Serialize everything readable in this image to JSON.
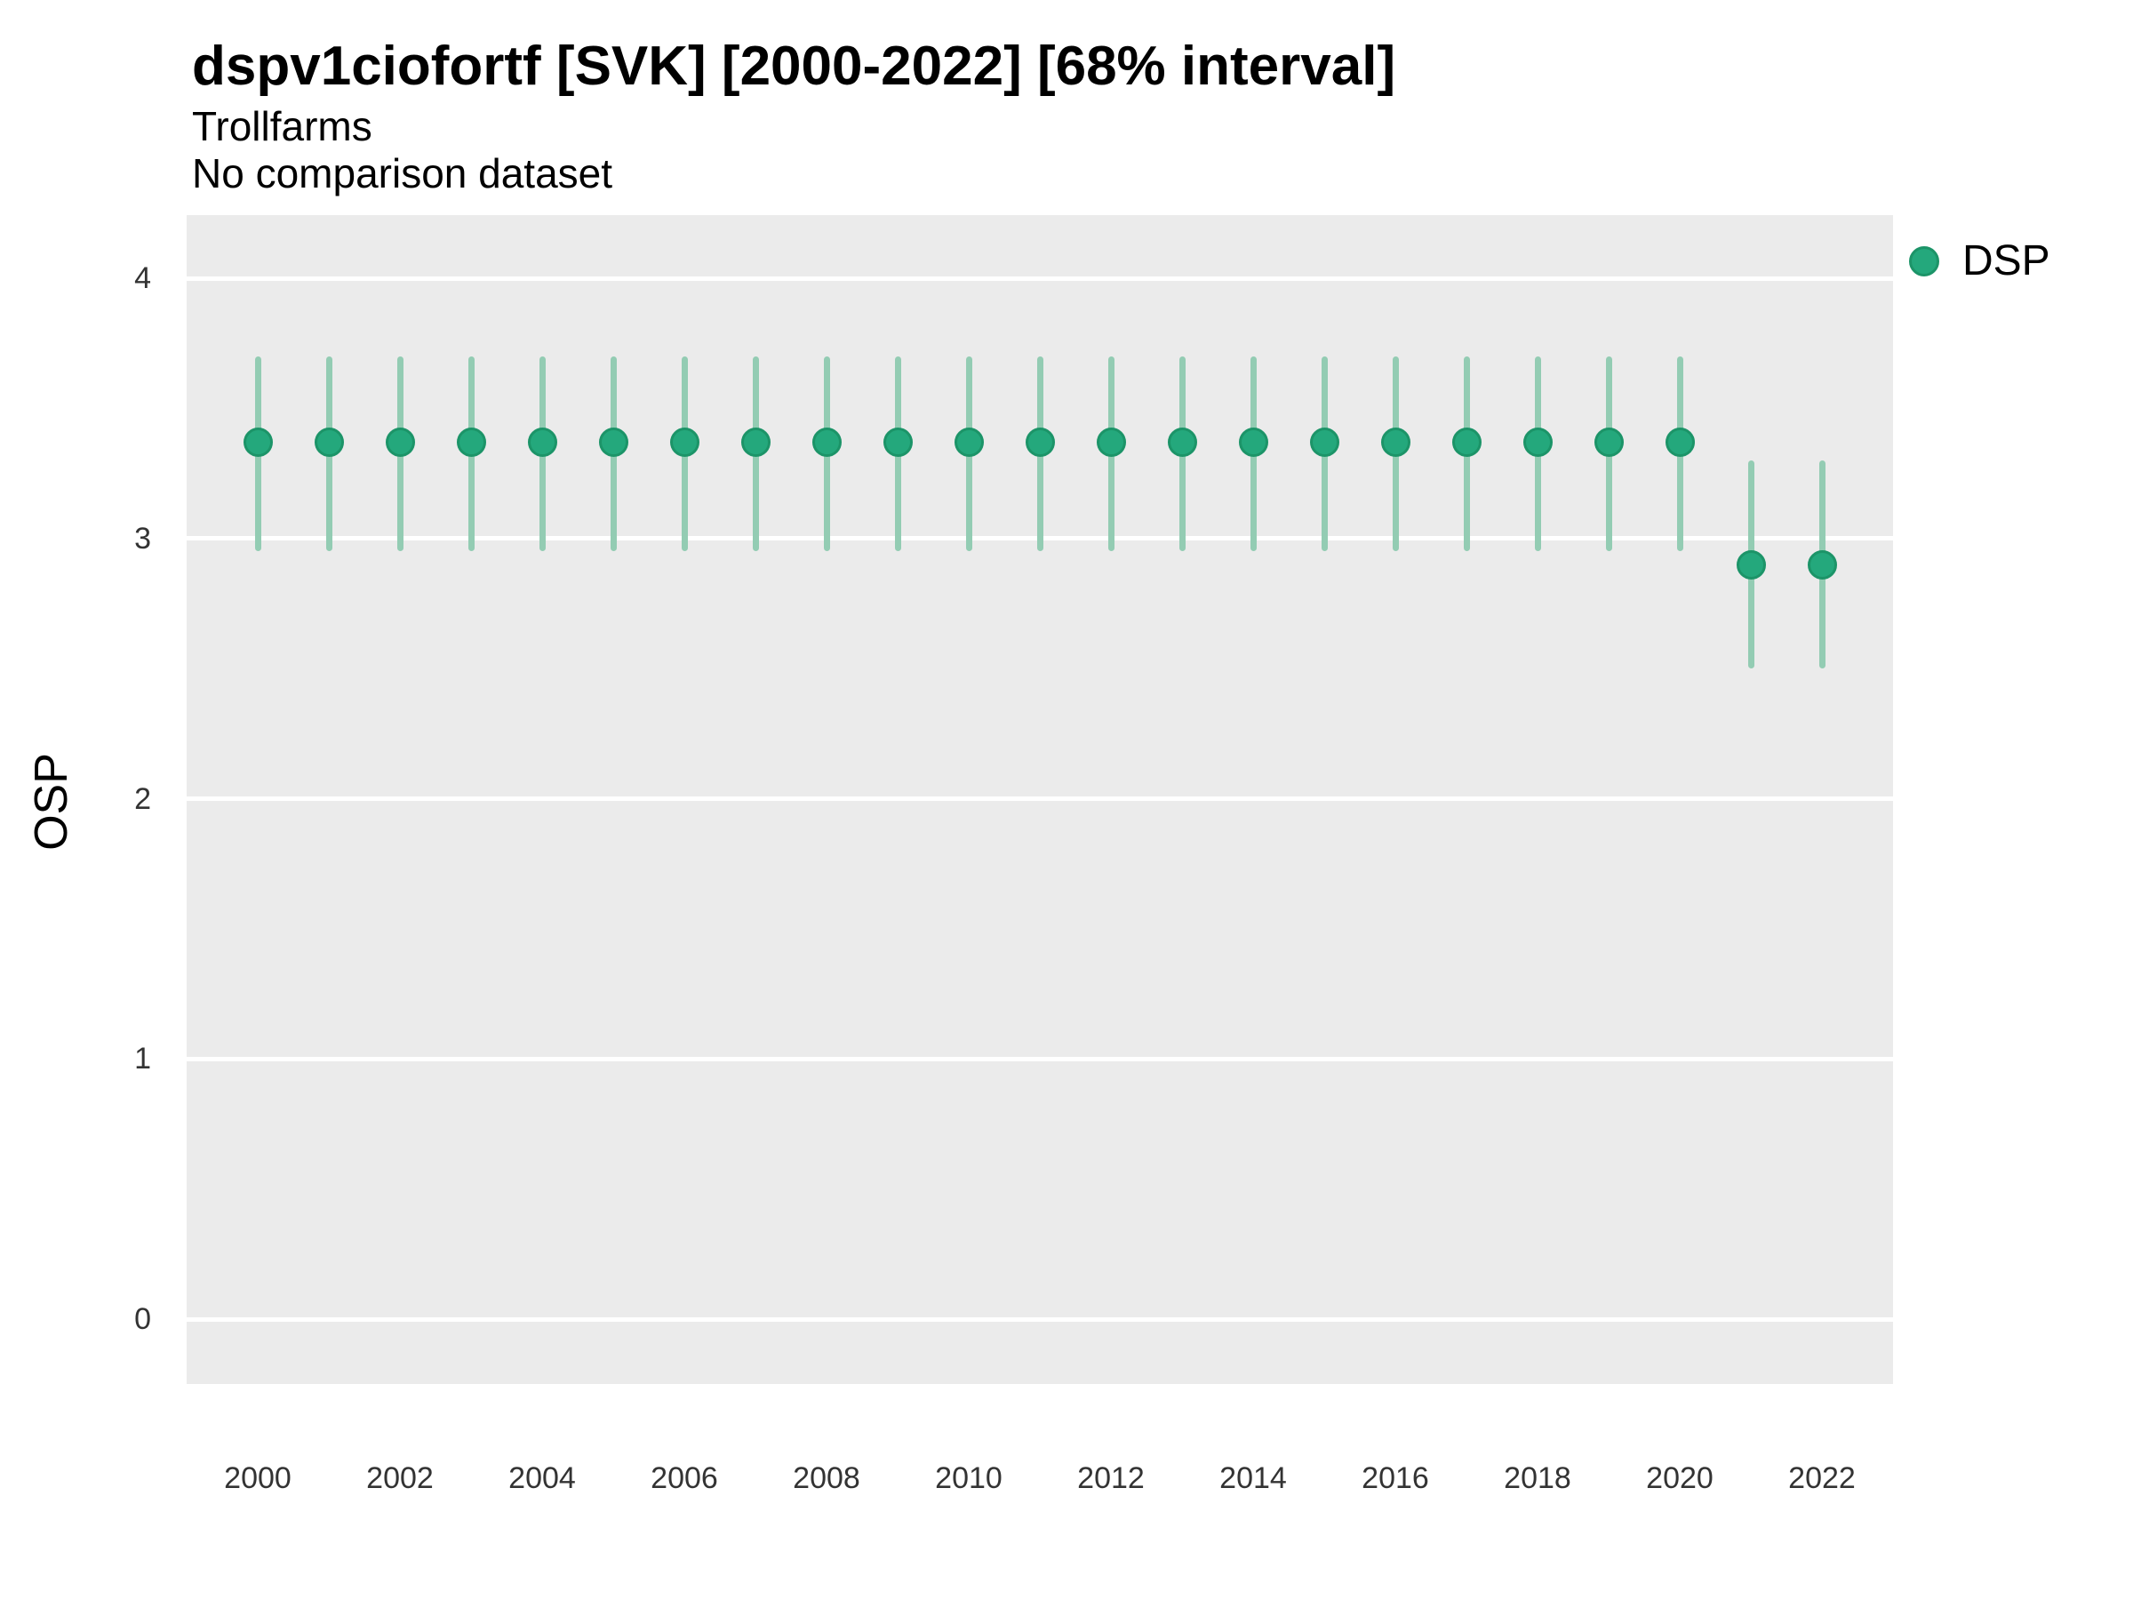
{
  "header": {
    "title": "dspv1ciofortf [SVK] [2000-2022] [68% interval]",
    "subtitle": "Trollfarms",
    "comparison_note": "No comparison dataset"
  },
  "y_axis": {
    "label": "OSP",
    "ticks": [
      0,
      1,
      2,
      3,
      4
    ]
  },
  "x_axis": {
    "ticks": [
      2000,
      2002,
      2004,
      2006,
      2008,
      2010,
      2012,
      2014,
      2016,
      2018,
      2020,
      2022
    ]
  },
  "legend": {
    "items": [
      {
        "label": "DSP",
        "marker": "circle-icon"
      }
    ]
  },
  "colors": {
    "panel_bg": "#ebebeb",
    "gridline": "#ffffff",
    "point_fill": "#24a87c",
    "point_stroke": "#1c9468",
    "interval_line": "#93ccb3",
    "title_text": "#000000",
    "tick_text": "#333333"
  },
  "chart_data": {
    "type": "scatter",
    "subtype": "pointrange",
    "title": "dspv1ciofortf [SVK] [2000-2022] [68% interval]",
    "subtitle": "Trollfarms",
    "note": "No comparison dataset",
    "interval": "68%",
    "xlabel": "",
    "ylabel": "OSP",
    "x": [
      2000,
      2001,
      2002,
      2003,
      2004,
      2005,
      2006,
      2007,
      2008,
      2009,
      2010,
      2011,
      2012,
      2013,
      2014,
      2015,
      2016,
      2017,
      2018,
      2019,
      2020,
      2021,
      2022
    ],
    "series": [
      {
        "name": "DSP",
        "values": [
          3.37,
          3.37,
          3.37,
          3.37,
          3.37,
          3.37,
          3.37,
          3.37,
          3.37,
          3.37,
          3.37,
          3.37,
          3.37,
          3.37,
          3.37,
          3.37,
          3.37,
          3.37,
          3.37,
          3.37,
          3.37,
          2.9,
          2.9
        ],
        "lower_68": [
          2.95,
          2.95,
          2.95,
          2.95,
          2.95,
          2.95,
          2.95,
          2.95,
          2.95,
          2.95,
          2.95,
          2.95,
          2.95,
          2.95,
          2.95,
          2.95,
          2.95,
          2.95,
          2.95,
          2.95,
          2.95,
          2.5,
          2.5
        ],
        "upper_68": [
          3.7,
          3.7,
          3.7,
          3.7,
          3.7,
          3.7,
          3.7,
          3.7,
          3.7,
          3.7,
          3.7,
          3.7,
          3.7,
          3.7,
          3.7,
          3.7,
          3.7,
          3.7,
          3.7,
          3.7,
          3.7,
          3.3,
          3.3
        ]
      }
    ],
    "ylim": [
      -0.25,
      4.25
    ],
    "y_ticks": [
      0,
      1,
      2,
      3,
      4
    ],
    "x_ticks": [
      2000,
      2002,
      2004,
      2006,
      2008,
      2010,
      2012,
      2014,
      2016,
      2018,
      2020,
      2022
    ],
    "grid": "horizontal major gridlines only (white) on gray panel; no vertical gridlines",
    "legend_position": "right-top"
  }
}
